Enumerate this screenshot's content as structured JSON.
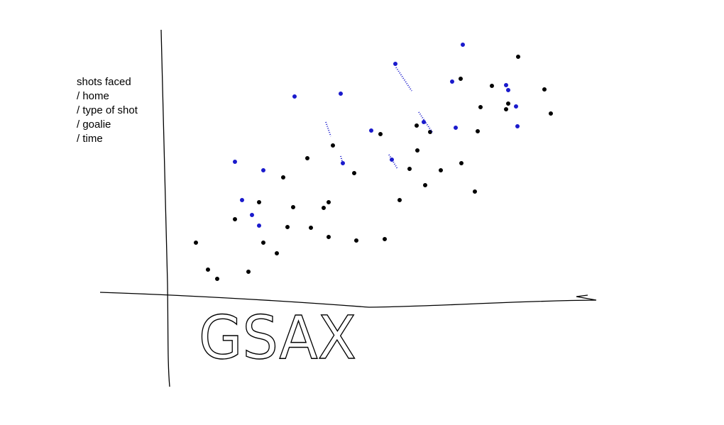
{
  "notes": {
    "lines": [
      "shots faced",
      "/ home",
      "/ type of shot",
      "/ goalie",
      "/ time"
    ]
  },
  "axis_label": "GSAX"
}
